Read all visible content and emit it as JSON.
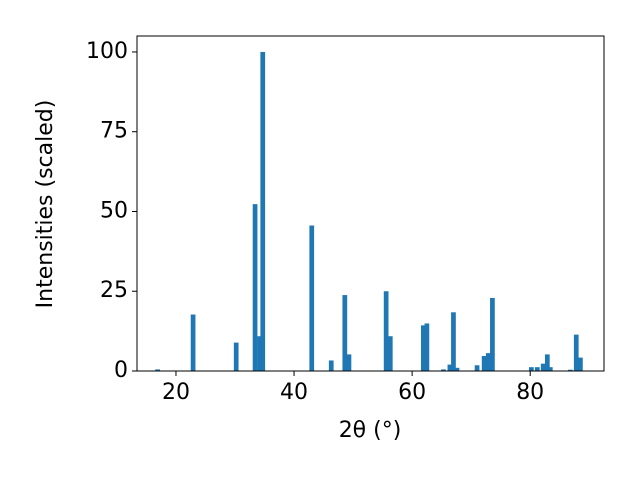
{
  "chart_data": {
    "type": "bar",
    "x": [
      16.9,
      22.9,
      30.2,
      33.4,
      34.2,
      34.7,
      43.0,
      46.3,
      48.6,
      49.3,
      55.6,
      56.3,
      61.9,
      62.5,
      65.3,
      66.4,
      67.0,
      67.6,
      71.0,
      72.2,
      72.9,
      73.6,
      80.2,
      81.2,
      82.2,
      82.9,
      83.4,
      86.8,
      87.8,
      88.5
    ],
    "values": [
      0.5,
      17.7,
      8.9,
      52.3,
      10.9,
      100,
      45.6,
      3.3,
      23.8,
      5.2,
      25,
      10.9,
      14.3,
      14.9,
      0.5,
      2,
      18.4,
      1,
      1.8,
      4.7,
      5.6,
      22.9,
      1.2,
      1.2,
      2.3,
      5.2,
      1.2,
      0.4,
      11.4,
      4.2
    ],
    "color": "#1f77b4",
    "xlabel": "2θ (°)",
    "ylabel": "Intensities (scaled)",
    "xlim": [
      13.4,
      92.5
    ],
    "xticks": [
      20,
      40,
      60,
      80
    ],
    "ylim": [
      0,
      105
    ],
    "yticks": [
      0,
      25,
      50,
      75,
      100
    ]
  }
}
